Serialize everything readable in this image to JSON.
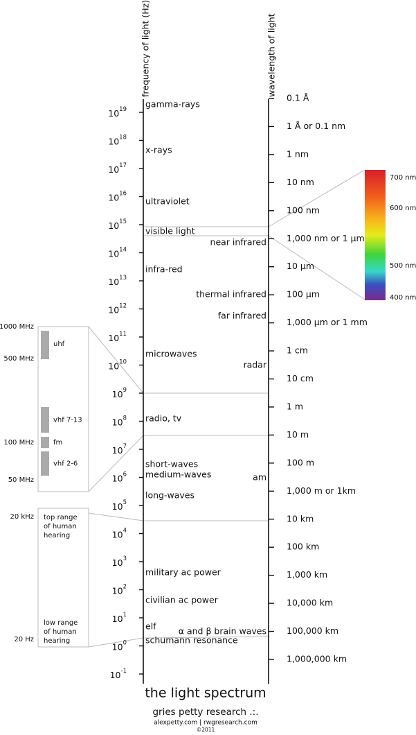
{
  "frequency_axis": {
    "title": "frequency of light (Hz)",
    "ticks": [
      {
        "base": "10",
        "exponent": "19"
      },
      {
        "base": "10",
        "exponent": "18"
      },
      {
        "base": "10",
        "exponent": "17"
      },
      {
        "base": "10",
        "exponent": "16"
      },
      {
        "base": "10",
        "exponent": "15"
      },
      {
        "base": "10",
        "exponent": "14"
      },
      {
        "base": "10",
        "exponent": "13"
      },
      {
        "base": "10",
        "exponent": "12"
      },
      {
        "base": "10",
        "exponent": "11"
      },
      {
        "base": "10",
        "exponent": "10"
      },
      {
        "base": "10",
        "exponent": "9"
      },
      {
        "base": "10",
        "exponent": "8"
      },
      {
        "base": "10",
        "exponent": "7"
      },
      {
        "base": "10",
        "exponent": "6"
      },
      {
        "base": "10",
        "exponent": "5"
      },
      {
        "base": "10",
        "exponent": "4"
      },
      {
        "base": "10",
        "exponent": "3"
      },
      {
        "base": "10",
        "exponent": "2"
      },
      {
        "base": "10",
        "exponent": "1"
      },
      {
        "base": "10",
        "exponent": "0"
      },
      {
        "base": "10",
        "exponent": "-1"
      }
    ],
    "band_labels": [
      "gamma-rays",
      "x-rays",
      "ultraviolet",
      "visible light",
      "infra-red",
      "microwaves",
      "radio, tv",
      "short-waves",
      "medium-waves",
      "long-waves",
      "military ac power",
      "civilian ac power",
      "elf",
      "schumann resonance"
    ]
  },
  "wavelength_axis": {
    "title": "wavelength of light",
    "ticks": [
      "0.1 Å",
      "1 Å or 0.1 nm",
      "1 nm",
      "10 nm",
      "100 nm",
      "1,000 nm or 1 µm",
      "10 µm",
      "100 µm",
      "1,000 µm or 1 mm",
      "1 cm",
      "10 cm",
      "1 m",
      "10 m",
      "100 m",
      "1,000 m or 1km",
      "10 km",
      "100 km",
      "1,000 km",
      "10,000 km",
      "100,000 km",
      "1,000,000 km"
    ],
    "band_labels": [
      "near infrared",
      "thermal infrared",
      "far infrared",
      "radar",
      "am",
      "α and β brain waves"
    ]
  },
  "visible_spectrum": {
    "labels": [
      "700 nm",
      "600 nm",
      "500 nm",
      "400 nm"
    ]
  },
  "radio_inset": {
    "frequency_labels": [
      "1000 MHz",
      "500 MHz",
      "100 MHz",
      "50 MHz"
    ],
    "bands": [
      "uhf",
      "vhf 7-13",
      "fm",
      "vhf 2-6"
    ]
  },
  "hearing_inset": {
    "frequency_labels": [
      "20 kHz",
      "20 Hz"
    ],
    "notes": [
      [
        "top range",
        "of human",
        "hearing"
      ],
      [
        "low range",
        "of human",
        "hearing"
      ]
    ]
  },
  "footer": {
    "title": "the light spectrum",
    "byline": "gries petty research .:.",
    "sites": "alexpetty.com | rwgresearch.com",
    "copyright": "©2011"
  }
}
